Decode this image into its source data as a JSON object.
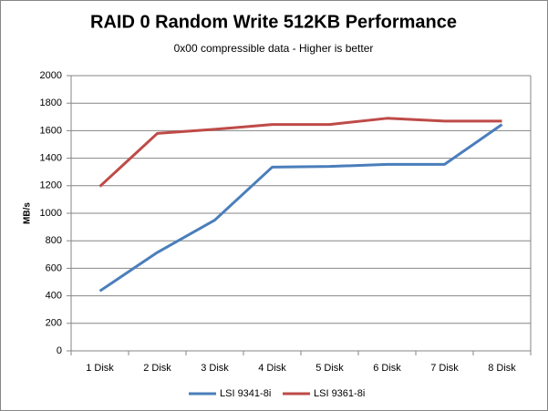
{
  "chart_data": {
    "type": "line",
    "title": "RAID 0 Random Write 512KB Performance",
    "subtitle": "0x00 compressible data - Higher is better",
    "y_label": "MB/s",
    "categories": [
      "1 Disk",
      "2 Disk",
      "3 Disk",
      "4 Disk",
      "5 Disk",
      "6 Disk",
      "7 Disk",
      "8 Disk"
    ],
    "series": [
      {
        "name": "LSI 9341-8i",
        "color": "#4a7ebb",
        "values": [
          435,
          715,
          950,
          1335,
          1340,
          1355,
          1355,
          1645
        ]
      },
      {
        "name": "LSI 9361-8i",
        "color": "#be4b48",
        "values": [
          1195,
          1580,
          1610,
          1645,
          1645,
          1690,
          1670,
          1670
        ]
      }
    ],
    "ylim": [
      0,
      2000
    ],
    "yticks": [
      0,
      200,
      400,
      600,
      800,
      1000,
      1200,
      1400,
      1600,
      1800,
      2000
    ],
    "grid": true,
    "legend": "bottom"
  }
}
